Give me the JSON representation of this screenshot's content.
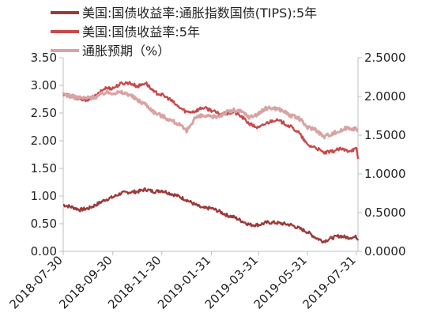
{
  "chart_data": {
    "type": "line",
    "title": "",
    "xlabel": "",
    "ylabel_left": "",
    "ylabel_right": "",
    "legend_position": "top-left",
    "grid": false,
    "x_ticks": [
      "2018-07-30",
      "2018-09-30",
      "2018-11-30",
      "2019-01-31",
      "2019-03-31",
      "2019-05-31",
      "2019-07-31"
    ],
    "x_range": [
      "2018-07-30",
      "2019-08-02"
    ],
    "y_left": {
      "range": [
        0,
        3.5
      ],
      "ticks": [
        "0.00",
        "0.50",
        "1.00",
        "1.50",
        "2.00",
        "2.50",
        "3.00",
        "3.50"
      ]
    },
    "y_right": {
      "range": [
        0,
        2.5
      ],
      "ticks": [
        "0.0000",
        "0.5000",
        "1.0000",
        "1.5000",
        "2.0000",
        "2.5000"
      ]
    },
    "series": [
      {
        "name": "美国:国债收益率:通胀指数国债(TIPS):5年",
        "axis": "left",
        "color": "#9c3a3a",
        "points": [
          [
            "2018-07-30",
            0.84
          ],
          [
            "2018-08-10",
            0.8
          ],
          [
            "2018-08-20",
            0.75
          ],
          [
            "2018-08-31",
            0.78
          ],
          [
            "2018-09-10",
            0.85
          ],
          [
            "2018-09-20",
            0.93
          ],
          [
            "2018-09-30",
            0.98
          ],
          [
            "2018-10-10",
            1.05
          ],
          [
            "2018-10-20",
            1.07
          ],
          [
            "2018-10-31",
            1.08
          ],
          [
            "2018-11-10",
            1.12
          ],
          [
            "2018-11-20",
            1.08
          ],
          [
            "2018-11-30",
            1.1
          ],
          [
            "2018-12-10",
            1.05
          ],
          [
            "2018-12-20",
            1.0
          ],
          [
            "2018-12-31",
            0.93
          ],
          [
            "2019-01-10",
            0.85
          ],
          [
            "2019-01-20",
            0.78
          ],
          [
            "2019-01-31",
            0.78
          ],
          [
            "2019-02-10",
            0.72
          ],
          [
            "2019-02-20",
            0.65
          ],
          [
            "2019-02-28",
            0.62
          ],
          [
            "2019-03-10",
            0.55
          ],
          [
            "2019-03-20",
            0.48
          ],
          [
            "2019-03-31",
            0.48
          ],
          [
            "2019-04-10",
            0.52
          ],
          [
            "2019-04-20",
            0.52
          ],
          [
            "2019-04-30",
            0.5
          ],
          [
            "2019-05-10",
            0.48
          ],
          [
            "2019-05-20",
            0.42
          ],
          [
            "2019-05-31",
            0.35
          ],
          [
            "2019-06-10",
            0.25
          ],
          [
            "2019-06-20",
            0.18
          ],
          [
            "2019-06-30",
            0.24
          ],
          [
            "2019-07-10",
            0.28
          ],
          [
            "2019-07-20",
            0.25
          ],
          [
            "2019-07-31",
            0.26
          ],
          [
            "2019-08-02",
            0.2
          ]
        ]
      },
      {
        "name": "美国:国债收益率:5年",
        "axis": "left",
        "color": "#c9494b",
        "points": [
          [
            "2018-07-30",
            2.85
          ],
          [
            "2018-08-10",
            2.8
          ],
          [
            "2018-08-20",
            2.73
          ],
          [
            "2018-08-31",
            2.75
          ],
          [
            "2018-09-10",
            2.82
          ],
          [
            "2018-09-20",
            2.95
          ],
          [
            "2018-09-30",
            2.95
          ],
          [
            "2018-10-10",
            3.03
          ],
          [
            "2018-10-20",
            3.05
          ],
          [
            "2018-10-31",
            2.98
          ],
          [
            "2018-11-10",
            3.05
          ],
          [
            "2018-11-20",
            2.88
          ],
          [
            "2018-11-30",
            2.83
          ],
          [
            "2018-12-10",
            2.75
          ],
          [
            "2018-12-20",
            2.62
          ],
          [
            "2018-12-31",
            2.52
          ],
          [
            "2019-01-10",
            2.53
          ],
          [
            "2019-01-20",
            2.6
          ],
          [
            "2019-01-31",
            2.55
          ],
          [
            "2019-02-10",
            2.48
          ],
          [
            "2019-02-20",
            2.49
          ],
          [
            "2019-02-28",
            2.52
          ],
          [
            "2019-03-10",
            2.43
          ],
          [
            "2019-03-20",
            2.3
          ],
          [
            "2019-03-31",
            2.23
          ],
          [
            "2019-04-10",
            2.32
          ],
          [
            "2019-04-20",
            2.38
          ],
          [
            "2019-04-30",
            2.33
          ],
          [
            "2019-05-10",
            2.25
          ],
          [
            "2019-05-20",
            2.15
          ],
          [
            "2019-05-31",
            1.92
          ],
          [
            "2019-06-10",
            1.88
          ],
          [
            "2019-06-20",
            1.78
          ],
          [
            "2019-06-30",
            1.8
          ],
          [
            "2019-07-10",
            1.85
          ],
          [
            "2019-07-20",
            1.82
          ],
          [
            "2019-07-31",
            1.85
          ],
          [
            "2019-08-02",
            1.67
          ]
        ]
      },
      {
        "name": "通胀预期（%）",
        "axis": "right",
        "color": "#d9a3a3",
        "points": [
          [
            "2018-07-30",
            2.03
          ],
          [
            "2018-08-10",
            2.0
          ],
          [
            "2018-08-20",
            1.98
          ],
          [
            "2018-08-31",
            1.98
          ],
          [
            "2018-09-10",
            2.0
          ],
          [
            "2018-09-20",
            2.05
          ],
          [
            "2018-09-30",
            2.05
          ],
          [
            "2018-10-10",
            2.05
          ],
          [
            "2018-10-20",
            2.03
          ],
          [
            "2018-10-31",
            1.95
          ],
          [
            "2018-11-10",
            1.9
          ],
          [
            "2018-11-20",
            1.8
          ],
          [
            "2018-11-30",
            1.75
          ],
          [
            "2018-12-10",
            1.7
          ],
          [
            "2018-12-20",
            1.65
          ],
          [
            "2018-12-31",
            1.55
          ],
          [
            "2019-01-10",
            1.72
          ],
          [
            "2019-01-20",
            1.75
          ],
          [
            "2019-01-31",
            1.73
          ],
          [
            "2019-02-10",
            1.75
          ],
          [
            "2019-02-20",
            1.8
          ],
          [
            "2019-02-28",
            1.82
          ],
          [
            "2019-03-10",
            1.8
          ],
          [
            "2019-03-20",
            1.73
          ],
          [
            "2019-03-31",
            1.78
          ],
          [
            "2019-04-10",
            1.85
          ],
          [
            "2019-04-20",
            1.85
          ],
          [
            "2019-04-30",
            1.82
          ],
          [
            "2019-05-10",
            1.75
          ],
          [
            "2019-05-20",
            1.72
          ],
          [
            "2019-05-31",
            1.6
          ],
          [
            "2019-06-10",
            1.58
          ],
          [
            "2019-06-20",
            1.48
          ],
          [
            "2019-06-30",
            1.52
          ],
          [
            "2019-07-10",
            1.55
          ],
          [
            "2019-07-20",
            1.6
          ],
          [
            "2019-07-31",
            1.58
          ],
          [
            "2019-08-02",
            1.55
          ]
        ]
      }
    ]
  }
}
